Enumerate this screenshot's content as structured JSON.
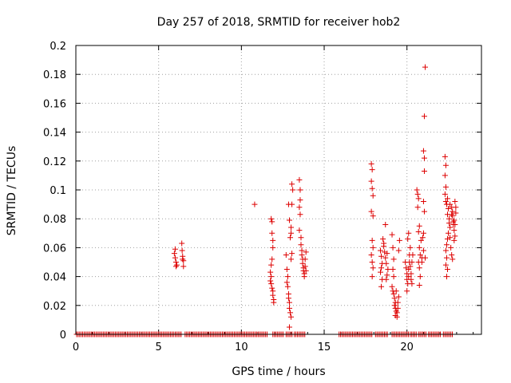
{
  "chart_data": {
    "type": "scatter",
    "title": "Day 257 of 2018, SRMTID for receiver hob2",
    "xlabel": "GPS time / hours",
    "ylabel": "SRMTID / TECUs",
    "xlim": [
      0,
      24.5
    ],
    "ylim": [
      0,
      0.2
    ],
    "xticks": [
      0,
      5,
      10,
      15,
      20
    ],
    "xtick_labels": [
      "0",
      "5",
      "10",
      "15",
      "20"
    ],
    "yticks": [
      0,
      0.02,
      0.04,
      0.06,
      0.08,
      0.1,
      0.12,
      0.14,
      0.16,
      0.18,
      0.2
    ],
    "ytick_labels": [
      "0",
      "0.02",
      "0.04",
      "0.06",
      "0.08",
      "0.1",
      "0.12",
      "0.14",
      "0.16",
      "0.18",
      "0.2"
    ],
    "grid": true,
    "marker": "+",
    "color": "#dd0000",
    "series": [
      {
        "name": "SRMTID",
        "zero_baseline_ranges": [
          [
            0.05,
            5.9
          ],
          [
            6.0,
            6.4
          ],
          [
            6.6,
            11.6
          ],
          [
            11.9,
            12.6
          ],
          [
            12.7,
            13.1
          ],
          [
            13.2,
            13.9
          ],
          [
            15.9,
            17.9
          ],
          [
            18.1,
            18.9
          ],
          [
            19.1,
            20.1
          ],
          [
            20.2,
            20.6
          ],
          [
            20.7,
            21.2
          ],
          [
            21.3,
            22.1
          ],
          [
            22.2,
            22.8
          ]
        ],
        "points": [
          [
            5.95,
            0.056
          ],
          [
            6.0,
            0.059
          ],
          [
            6.0,
            0.053
          ],
          [
            6.05,
            0.05
          ],
          [
            6.05,
            0.047
          ],
          [
            6.1,
            0.048
          ],
          [
            6.4,
            0.063
          ],
          [
            6.42,
            0.058
          ],
          [
            6.45,
            0.054
          ],
          [
            6.45,
            0.052
          ],
          [
            6.5,
            0.051
          ],
          [
            6.5,
            0.047
          ],
          [
            10.8,
            0.09
          ],
          [
            11.8,
            0.08
          ],
          [
            11.85,
            0.078
          ],
          [
            11.85,
            0.07
          ],
          [
            11.9,
            0.065
          ],
          [
            11.9,
            0.06
          ],
          [
            11.85,
            0.052
          ],
          [
            11.8,
            0.048
          ],
          [
            11.75,
            0.043
          ],
          [
            11.8,
            0.04
          ],
          [
            11.75,
            0.037
          ],
          [
            11.8,
            0.035
          ],
          [
            11.85,
            0.032
          ],
          [
            11.9,
            0.03
          ],
          [
            11.9,
            0.027
          ],
          [
            11.95,
            0.024
          ],
          [
            11.95,
            0.022
          ],
          [
            12.7,
            0.055
          ],
          [
            12.75,
            0.045
          ],
          [
            12.8,
            0.04
          ],
          [
            12.75,
            0.036
          ],
          [
            12.8,
            0.033
          ],
          [
            12.85,
            0.028
          ],
          [
            12.85,
            0.025
          ],
          [
            12.9,
            0.022
          ],
          [
            12.9,
            0.018
          ],
          [
            12.95,
            0.015
          ],
          [
            13.0,
            0.012
          ],
          [
            12.9,
            0.005
          ],
          [
            12.85,
            0.09
          ],
          [
            12.9,
            0.079
          ],
          [
            13.0,
            0.074
          ],
          [
            13.0,
            0.07
          ],
          [
            12.95,
            0.067
          ],
          [
            13.05,
            0.056
          ],
          [
            13.0,
            0.052
          ],
          [
            13.05,
            0.104
          ],
          [
            13.1,
            0.1
          ],
          [
            13.05,
            0.09
          ],
          [
            13.5,
            0.107
          ],
          [
            13.55,
            0.1
          ],
          [
            13.55,
            0.093
          ],
          [
            13.5,
            0.088
          ],
          [
            13.55,
            0.083
          ],
          [
            13.5,
            0.072
          ],
          [
            13.6,
            0.067
          ],
          [
            13.6,
            0.062
          ],
          [
            13.65,
            0.058
          ],
          [
            13.65,
            0.055
          ],
          [
            13.7,
            0.052
          ],
          [
            13.7,
            0.049
          ],
          [
            13.75,
            0.046
          ],
          [
            13.75,
            0.044
          ],
          [
            13.8,
            0.042
          ],
          [
            13.8,
            0.04
          ],
          [
            13.85,
            0.047
          ],
          [
            13.85,
            0.052
          ],
          [
            13.9,
            0.057
          ],
          [
            13.9,
            0.044
          ],
          [
            17.85,
            0.118
          ],
          [
            17.9,
            0.114
          ],
          [
            17.85,
            0.106
          ],
          [
            17.9,
            0.101
          ],
          [
            17.95,
            0.096
          ],
          [
            17.85,
            0.085
          ],
          [
            17.95,
            0.082
          ],
          [
            17.9,
            0.065
          ],
          [
            17.95,
            0.06
          ],
          [
            17.85,
            0.055
          ],
          [
            17.9,
            0.05
          ],
          [
            17.95,
            0.046
          ],
          [
            17.9,
            0.04
          ],
          [
            18.4,
            0.058
          ],
          [
            18.45,
            0.054
          ],
          [
            18.5,
            0.049
          ],
          [
            18.45,
            0.046
          ],
          [
            18.4,
            0.043
          ],
          [
            18.5,
            0.038
          ],
          [
            18.45,
            0.033
          ],
          [
            18.55,
            0.066
          ],
          [
            18.6,
            0.063
          ],
          [
            18.6,
            0.061
          ],
          [
            18.65,
            0.057
          ],
          [
            18.7,
            0.053
          ],
          [
            18.75,
            0.049
          ],
          [
            18.8,
            0.056
          ],
          [
            18.85,
            0.045
          ],
          [
            18.7,
            0.076
          ],
          [
            18.8,
            0.041
          ],
          [
            18.75,
            0.038
          ],
          [
            19.1,
            0.069
          ],
          [
            19.15,
            0.06
          ],
          [
            19.2,
            0.052
          ],
          [
            19.15,
            0.045
          ],
          [
            19.2,
            0.04
          ],
          [
            19.1,
            0.033
          ],
          [
            19.15,
            0.03
          ],
          [
            19.2,
            0.028
          ],
          [
            19.25,
            0.025
          ],
          [
            19.3,
            0.022
          ],
          [
            19.25,
            0.02
          ],
          [
            19.3,
            0.018
          ],
          [
            19.35,
            0.016
          ],
          [
            19.3,
            0.013
          ],
          [
            19.4,
            0.012
          ],
          [
            19.4,
            0.015
          ],
          [
            19.45,
            0.018
          ],
          [
            19.45,
            0.022
          ],
          [
            19.5,
            0.026
          ],
          [
            19.35,
            0.03
          ],
          [
            19.5,
            0.058
          ],
          [
            19.55,
            0.065
          ],
          [
            19.9,
            0.05
          ],
          [
            19.95,
            0.046
          ],
          [
            20.0,
            0.042
          ],
          [
            20.0,
            0.038
          ],
          [
            20.05,
            0.035
          ],
          [
            20.1,
            0.04
          ],
          [
            20.1,
            0.045
          ],
          [
            20.15,
            0.05
          ],
          [
            20.15,
            0.055
          ],
          [
            20.2,
            0.06
          ],
          [
            20.05,
            0.066
          ],
          [
            20.1,
            0.07
          ],
          [
            20.2,
            0.047
          ],
          [
            20.25,
            0.042
          ],
          [
            20.25,
            0.038
          ],
          [
            20.3,
            0.035
          ],
          [
            20.3,
            0.05
          ],
          [
            20.35,
            0.055
          ],
          [
            20.0,
            0.03
          ],
          [
            20.6,
            0.1
          ],
          [
            20.65,
            0.097
          ],
          [
            20.7,
            0.094
          ],
          [
            20.65,
            0.088
          ],
          [
            20.75,
            0.075
          ],
          [
            20.7,
            0.071
          ],
          [
            20.75,
            0.06
          ],
          [
            20.8,
            0.055
          ],
          [
            20.7,
            0.05
          ],
          [
            20.75,
            0.046
          ],
          [
            20.8,
            0.04
          ],
          [
            20.75,
            0.034
          ],
          [
            20.85,
            0.065
          ],
          [
            20.9,
            0.05
          ],
          [
            20.9,
            0.053
          ],
          [
            21.1,
            0.185
          ],
          [
            21.05,
            0.151
          ],
          [
            21.0,
            0.127
          ],
          [
            21.05,
            0.122
          ],
          [
            21.05,
            0.113
          ],
          [
            21.0,
            0.092
          ],
          [
            21.05,
            0.085
          ],
          [
            21.0,
            0.07
          ],
          [
            20.95,
            0.067
          ],
          [
            21.1,
            0.053
          ],
          [
            21.0,
            0.058
          ],
          [
            22.3,
            0.123
          ],
          [
            22.35,
            0.117
          ],
          [
            22.3,
            0.11
          ],
          [
            22.35,
            0.102
          ],
          [
            22.3,
            0.097
          ],
          [
            22.35,
            0.092
          ],
          [
            22.4,
            0.09
          ],
          [
            22.45,
            0.094
          ],
          [
            22.5,
            0.087
          ],
          [
            22.45,
            0.083
          ],
          [
            22.55,
            0.08
          ],
          [
            22.55,
            0.077
          ],
          [
            22.6,
            0.074
          ],
          [
            22.5,
            0.07
          ],
          [
            22.45,
            0.066
          ],
          [
            22.4,
            0.062
          ],
          [
            22.35,
            0.058
          ],
          [
            22.4,
            0.053
          ],
          [
            22.35,
            0.048
          ],
          [
            22.45,
            0.045
          ],
          [
            22.4,
            0.04
          ],
          [
            22.6,
            0.09
          ],
          [
            22.7,
            0.088
          ],
          [
            22.75,
            0.085
          ],
          [
            22.75,
            0.082
          ],
          [
            22.8,
            0.078
          ],
          [
            22.8,
            0.076
          ],
          [
            22.85,
            0.079
          ],
          [
            22.85,
            0.072
          ],
          [
            22.9,
            0.068
          ],
          [
            22.65,
            0.06
          ],
          [
            22.7,
            0.055
          ],
          [
            22.75,
            0.052
          ],
          [
            22.85,
            0.065
          ],
          [
            22.9,
            0.092
          ],
          [
            22.95,
            0.088
          ],
          [
            22.95,
            0.084
          ],
          [
            22.9,
            0.076
          ],
          [
            22.6,
            0.067
          ],
          [
            22.7,
            0.083
          ]
        ]
      }
    ]
  }
}
